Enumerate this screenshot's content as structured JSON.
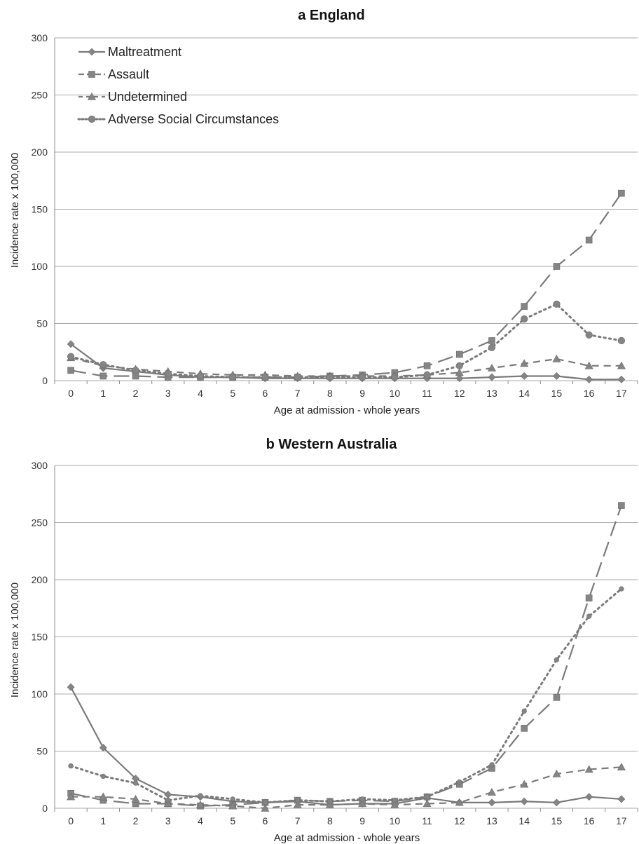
{
  "chart_data": [
    {
      "type": "line",
      "title": "a  England",
      "xlabel": "Age at admission - whole years",
      "ylabel": "Incidence rate x 100,000",
      "ylim": [
        0,
        300
      ],
      "yticks": [
        0,
        50,
        100,
        150,
        200,
        250,
        300
      ],
      "categories": [
        "0",
        "1",
        "2",
        "3",
        "4",
        "5",
        "6",
        "7",
        "8",
        "9",
        "10",
        "11",
        "12",
        "13",
        "14",
        "15",
        "16",
        "17"
      ],
      "grid": true,
      "legend": "top-left",
      "series": [
        {
          "name": "Maltreatment",
          "style": "solid",
          "marker": "diamond",
          "values": [
            32,
            11,
            8,
            5,
            3,
            3,
            2,
            2,
            2,
            2,
            2,
            2,
            2,
            3,
            4,
            4,
            1,
            1
          ]
        },
        {
          "name": "Assault",
          "style": "longdash",
          "marker": "square",
          "values": [
            9,
            4,
            4,
            3,
            3,
            3,
            3,
            3,
            4,
            5,
            7,
            13,
            23,
            35,
            65,
            100,
            123,
            164
          ]
        },
        {
          "name": "Undetermined",
          "style": "dash",
          "marker": "triangle",
          "values": [
            20,
            13,
            10,
            8,
            6,
            5,
            5,
            4,
            4,
            4,
            4,
            5,
            7,
            11,
            15,
            19,
            13,
            13
          ]
        },
        {
          "name": "Adverse Social Circumstances",
          "style": "dot",
          "marker": "circle",
          "values": [
            21,
            14,
            9,
            6,
            4,
            3,
            3,
            3,
            3,
            3,
            3,
            5,
            13,
            29,
            54,
            67,
            40,
            35
          ]
        }
      ]
    },
    {
      "type": "line",
      "title": "b  Western Australia",
      "xlabel": "Age at admission - whole years",
      "ylabel": "Incidence rate x 100,000",
      "ylim": [
        0,
        300
      ],
      "yticks": [
        0,
        50,
        100,
        150,
        200,
        250,
        300
      ],
      "categories": [
        "0",
        "1",
        "2",
        "3",
        "4",
        "5",
        "6",
        "7",
        "8",
        "9",
        "10",
        "11",
        "12",
        "13",
        "14",
        "15",
        "16",
        "17"
      ],
      "grid": true,
      "legend": "none",
      "series": [
        {
          "name": "Maltreatment",
          "style": "solid",
          "marker": "diamond",
          "values": [
            106,
            53,
            26,
            12,
            10,
            6,
            5,
            6,
            3,
            4,
            4,
            9,
            5,
            5,
            6,
            5,
            10,
            8
          ]
        },
        {
          "name": "Assault",
          "style": "longdash",
          "marker": "square",
          "values": [
            13,
            7,
            4,
            4,
            2,
            3,
            5,
            7,
            6,
            7,
            6,
            10,
            21,
            35,
            70,
            97,
            184,
            265
          ]
        },
        {
          "name": "Undetermined",
          "style": "dash",
          "marker": "triangle",
          "values": [
            10,
            10,
            8,
            4,
            3,
            2,
            0,
            3,
            3,
            4,
            3,
            4,
            5,
            14,
            21,
            30,
            34,
            36
          ]
        },
        {
          "name": "Adverse Social Circumstances",
          "style": "dot",
          "marker": "circle",
          "values": [
            37,
            28,
            22,
            7,
            11,
            8,
            5,
            7,
            6,
            8,
            7,
            10,
            23,
            38,
            85,
            130,
            168,
            192
          ]
        }
      ]
    }
  ]
}
